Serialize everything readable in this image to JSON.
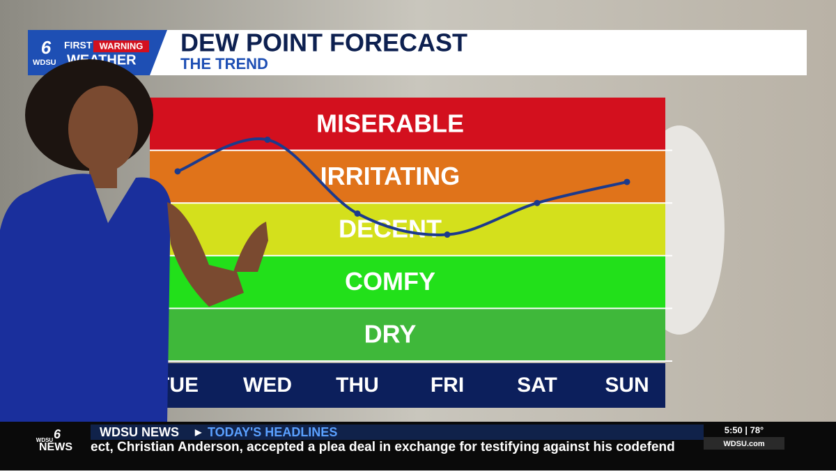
{
  "header": {
    "logo_top": "FIRST",
    "logo_badge": "WARNING",
    "logo_station": "WDSU",
    "logo_weather": "WEATHER",
    "logo_number": "6"
  },
  "chart_data": {
    "type": "line",
    "title": "DEW POINT FORECAST",
    "subtitle": "THE TREND",
    "categories": [
      "TUE",
      "WED",
      "THU",
      "FRI",
      "SAT",
      "SUN"
    ],
    "values": [
      73,
      76,
      69,
      67,
      70,
      72
    ],
    "color": "#1c3a8c",
    "ylim": [
      55,
      80
    ],
    "bands": [
      {
        "label": "MISERABLE",
        "from": 75,
        "to": 80,
        "color": "#d3101e"
      },
      {
        "label": "IRRITATING",
        "from": 70,
        "to": 75,
        "color": "#e0731a"
      },
      {
        "label": "DECENT",
        "from": 65,
        "to": 70,
        "color": "#d4e01c"
      },
      {
        "label": "COMFY",
        "from": 60,
        "to": 65,
        "color": "#22e01a"
      },
      {
        "label": "DRY",
        "from": 55,
        "to": 60,
        "color": "#3fb83a"
      }
    ]
  },
  "ticker": {
    "logo_station": "WDSU",
    "logo_news": "NEWS",
    "logo_number": "6",
    "section": "WDSU NEWS",
    "headline_label": "TODAY'S HEADLINES",
    "text": "ect, Christian Anderson, accepted a plea deal in exchange for testifying against his codefend",
    "time": "5:50 | 78°",
    "site": "WDSU.com"
  }
}
